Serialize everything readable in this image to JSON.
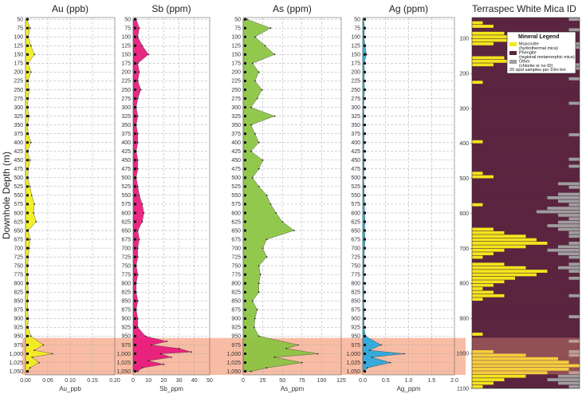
{
  "y_axis_label": "Downhole Depth (m)",
  "depth_ticks": [
    50,
    75,
    100,
    125,
    150,
    175,
    200,
    225,
    250,
    275,
    300,
    325,
    350,
    375,
    400,
    425,
    450,
    475,
    500,
    525,
    550,
    575,
    600,
    625,
    650,
    675,
    700,
    725,
    750,
    775,
    800,
    825,
    850,
    875,
    900,
    925,
    950,
    975,
    1000,
    1025,
    1050
  ],
  "depth_tick_labels": [
    "50",
    "75",
    "100",
    "125",
    "150",
    "175",
    "200",
    "225",
    "250",
    "275",
    "300",
    "325",
    "350",
    "375",
    "400",
    "425",
    "450",
    "475",
    "500",
    "525",
    "550",
    "575",
    "600",
    "625",
    "650",
    "675",
    "700",
    "725",
    "750",
    "775",
    "800",
    "825",
    "850",
    "875",
    "900",
    "925",
    "950",
    "975",
    "1,000",
    "1,025",
    "1,050"
  ],
  "highlight_depth": [
    955,
    1060
  ],
  "colors": {
    "au": "#f2ee1c",
    "sb": "#e8177a",
    "as": "#8ac43f",
    "ag": "#25a9e0",
    "highlight": "#f5a07e",
    "muscovite": "#f2e61c",
    "phengite": "#5b2540",
    "other": "#9e9e9e"
  },
  "chart_data": [
    {
      "type": "area",
      "id": "au",
      "title": "Au (ppb)",
      "xlabel": "Au_ppb",
      "xlim": [
        0,
        0.2
      ],
      "ticks": [
        0,
        0.05,
        0.1,
        0.15,
        0.2
      ],
      "tick_labels": [
        "0.00",
        "0.05",
        "0.10",
        "0.15",
        "0.20"
      ],
      "depth": [
        50,
        75,
        100,
        125,
        150,
        175,
        200,
        225,
        250,
        275,
        300,
        325,
        350,
        375,
        400,
        425,
        450,
        475,
        500,
        525,
        550,
        575,
        600,
        625,
        650,
        675,
        700,
        725,
        750,
        775,
        800,
        825,
        850,
        875,
        900,
        925,
        950,
        975,
        990,
        1000,
        1010,
        1025,
        1040,
        1050
      ],
      "values": [
        0.003,
        0.01,
        0.006,
        0.012,
        0.02,
        0.006,
        0.012,
        0.005,
        0.008,
        0.006,
        0.004,
        0.008,
        0.004,
        0.006,
        0.012,
        0.004,
        0.01,
        0.006,
        0.005,
        0.01,
        0.014,
        0.02,
        0.018,
        0.024,
        0.006,
        0.01,
        0.008,
        0.006,
        0.005,
        0.004,
        0.005,
        0.006,
        0.004,
        0.005,
        0.006,
        0.005,
        0.012,
        0.04,
        0.02,
        0.06,
        0.015,
        0.03,
        0.01,
        0.005
      ]
    },
    {
      "type": "area",
      "id": "sb",
      "title": "Sb (ppm)",
      "xlabel": "Sb_ppm",
      "xlim": [
        0,
        50
      ],
      "ticks": [
        0,
        10,
        20,
        30,
        40,
        50
      ],
      "tick_labels": [
        "0",
        "10",
        "20",
        "30",
        "40",
        "50"
      ],
      "depth": [
        50,
        75,
        100,
        125,
        150,
        175,
        200,
        225,
        250,
        275,
        300,
        325,
        350,
        375,
        400,
        425,
        450,
        475,
        500,
        525,
        550,
        575,
        600,
        625,
        650,
        675,
        700,
        725,
        750,
        775,
        800,
        825,
        850,
        875,
        900,
        925,
        950,
        965,
        975,
        985,
        995,
        1000,
        1010,
        1020,
        1030,
        1040,
        1050
      ],
      "values": [
        2,
        4,
        3,
        6,
        10,
        3,
        4,
        3,
        5,
        3,
        2,
        3,
        2,
        3,
        3,
        2,
        3,
        3,
        2,
        3,
        4,
        6,
        7,
        6,
        3,
        4,
        3,
        3,
        2,
        3,
        2,
        2,
        3,
        2,
        3,
        3,
        8,
        22,
        12,
        30,
        38,
        18,
        25,
        10,
        20,
        6,
        3
      ]
    },
    {
      "type": "area",
      "id": "as",
      "title": "As (ppm)",
      "xlabel": "As_ppm",
      "xlim": [
        0,
        125
      ],
      "ticks": [
        0,
        25,
        50,
        75,
        100,
        125
      ],
      "tick_labels": [
        "0",
        "25",
        "50",
        "75",
        "100",
        "125"
      ],
      "depth": [
        50,
        75,
        100,
        125,
        150,
        175,
        200,
        225,
        250,
        275,
        300,
        325,
        350,
        375,
        400,
        425,
        450,
        475,
        500,
        525,
        550,
        575,
        600,
        625,
        650,
        675,
        700,
        725,
        750,
        775,
        800,
        825,
        850,
        875,
        900,
        925,
        950,
        975,
        985,
        1000,
        1010,
        1025,
        1040,
        1050
      ],
      "values": [
        5,
        35,
        15,
        28,
        40,
        12,
        20,
        15,
        24,
        18,
        10,
        40,
        10,
        15,
        20,
        10,
        25,
        20,
        12,
        20,
        30,
        35,
        42,
        50,
        65,
        30,
        25,
        30,
        20,
        22,
        20,
        20,
        12,
        18,
        15,
        14,
        20,
        70,
        55,
        95,
        40,
        75,
        30,
        10
      ]
    },
    {
      "type": "area",
      "id": "ag",
      "title": "Ag (ppm)",
      "xlabel": "Ag_ppm",
      "xlim": [
        0,
        2
      ],
      "ticks": [
        0,
        0.5,
        1,
        1.5,
        2
      ],
      "tick_labels": [
        "0.0",
        "0.5",
        "1.0",
        "1.5",
        "2.0"
      ],
      "depth": [
        50,
        75,
        100,
        125,
        150,
        175,
        200,
        225,
        250,
        275,
        300,
        325,
        350,
        375,
        400,
        425,
        450,
        475,
        500,
        525,
        550,
        575,
        600,
        625,
        650,
        675,
        700,
        725,
        750,
        775,
        800,
        825,
        850,
        875,
        900,
        925,
        950,
        975,
        990,
        1000,
        1010,
        1025,
        1040,
        1050
      ],
      "values": [
        0.02,
        0.04,
        0.03,
        0.05,
        0.08,
        0.03,
        0.04,
        0.03,
        0.04,
        0.03,
        0.02,
        0.03,
        0.02,
        0.03,
        0.03,
        0.02,
        0.03,
        0.03,
        0.02,
        0.03,
        0.03,
        0.04,
        0.04,
        0.05,
        0.04,
        0.05,
        0.04,
        0.03,
        0.03,
        0.03,
        0.02,
        0.03,
        0.02,
        0.03,
        0.03,
        0.03,
        0.06,
        0.4,
        0.15,
        0.9,
        0.2,
        0.6,
        0.1,
        0.03
      ]
    }
  ],
  "mica": {
    "title": "Terraspec White Mica ID",
    "ylim": [
      40,
      1100
    ],
    "ticks": [
      100,
      200,
      300,
      400,
      500,
      600,
      700,
      800,
      900,
      1000,
      1100
    ],
    "tick_labels": [
      "100",
      "200",
      "300",
      "400",
      "500",
      "600",
      "700",
      "800",
      "900",
      "1000",
      "1100"
    ],
    "legend_title": "Mineral Legend",
    "legend": [
      {
        "label": "Muscovite",
        "sub": "(hydrothermal mica)",
        "color": "#f2e61c"
      },
      {
        "label": "Phengite",
        "sub": "(regional metamorphic mica)",
        "color": "#5b2540"
      },
      {
        "label": "Other",
        "sub": "(chlorite or no ID)",
        "color": "#9e9e9e"
      }
    ],
    "legend_note": "20 spot samples per 10m bin",
    "bins_muscovite": [
      0,
      2,
      4,
      0,
      6,
      8,
      12,
      4,
      0,
      0,
      0,
      6,
      10,
      4,
      0,
      0,
      0,
      0,
      2,
      0,
      0,
      0,
      0,
      0,
      0,
      0,
      0,
      0,
      0,
      0,
      0,
      0,
      0,
      0,
      0,
      2,
      0,
      0,
      0,
      0,
      0,
      0,
      0,
      0,
      2,
      4,
      0,
      0,
      0,
      0,
      0,
      0,
      0,
      2,
      0,
      0,
      0,
      0,
      0,
      0,
      4,
      6,
      10,
      12,
      14,
      10,
      6,
      4,
      2,
      0,
      6,
      10,
      14,
      12,
      8,
      6,
      4,
      2,
      4,
      6,
      2,
      0,
      0,
      0,
      0,
      0,
      0,
      0,
      0,
      0,
      2,
      0,
      0,
      0,
      0,
      4,
      10,
      16,
      18,
      20,
      18,
      14,
      10,
      6,
      4,
      2
    ],
    "bins_other": [
      2,
      0,
      0,
      2,
      0,
      0,
      0,
      2,
      2,
      0,
      0,
      0,
      0,
      2,
      2,
      0,
      0,
      2,
      0,
      0,
      0,
      0,
      0,
      0,
      2,
      0,
      0,
      0,
      0,
      0,
      0,
      0,
      0,
      2,
      0,
      0,
      0,
      0,
      0,
      0,
      2,
      0,
      2,
      0,
      0,
      0,
      0,
      4,
      2,
      0,
      4,
      6,
      4,
      2,
      6,
      8,
      4,
      2,
      4,
      6,
      4,
      2,
      2,
      0,
      2,
      4,
      6,
      4,
      2,
      0,
      2,
      4,
      2,
      0,
      2,
      0,
      0,
      0,
      0,
      2,
      0,
      0,
      0,
      0,
      0,
      2,
      0,
      0,
      0,
      0,
      0,
      0,
      2,
      0,
      0,
      2,
      2,
      0,
      0,
      0,
      0,
      2,
      4,
      6,
      4,
      2
    ]
  }
}
